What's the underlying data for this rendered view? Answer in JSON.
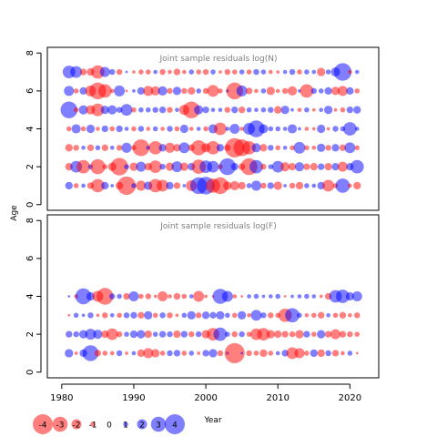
{
  "chart_data": {
    "type": "bubble",
    "ylabel": "Age",
    "xlabel": "Year",
    "colors": {
      "positive": "#0000ff",
      "negative": "#ff0000",
      "title": "#7f7f7f",
      "fill_opacity": 0.5
    },
    "x_ticks": [
      1980,
      1990,
      2000,
      2010,
      2020
    ],
    "y_ticks": [
      0,
      2,
      4,
      6,
      8
    ],
    "panels": [
      {
        "title": "Joint sample residuals log(N)",
        "xlim": [
          1978,
          2024
        ],
        "ylim": [
          -0.3,
          8.3
        ],
        "rows": [
          {
            "age": 1,
            "residuals": [
              0.9,
              -0.6,
              0.5,
              -0.8,
              -1.6,
              0.9,
              0.4,
              -0.9,
              -2.2,
              0.6,
              -1.2,
              1.0,
              -1.6,
              -1.4,
              0.9,
              -0.8,
              0.4,
              -1.3,
              2.0,
              2.1,
              -1.7,
              -2.0,
              -1.0,
              -1.1,
              -0.9,
              0.6,
              1.2,
              -0.7,
              0.8,
              -1.0,
              0.4,
              -0.7,
              -0.9,
              0.6,
              0.5,
              0.9,
              -1.4,
              -0.6,
              1.7,
              -0.5,
              -0.9
            ]
          },
          {
            "age": 2,
            "residuals": [
              -0.9,
              1.4,
              -1.6,
              0.6,
              -1.8,
              -0.6,
              -1.0,
              -2.1,
              0.6,
              -1.0,
              1.2,
              -0.9,
              -1.5,
              0.7,
              -1.0,
              1.3,
              -1.0,
              0.9,
              -1.7,
              1.5,
              1.4,
              -0.6,
              2.0,
              0.9,
              -0.8,
              -2.0,
              1.6,
              -0.7,
              0.6,
              1.4,
              -1.1,
              -0.9,
              1.1,
              -0.8,
              -0.9,
              0.8,
              -0.9,
              0.9,
              -1.2,
              0.9,
              1.6
            ]
          },
          {
            "age": 3,
            "residuals": [
              -0.9,
              -0.7,
              0.5,
              -0.8,
              0.6,
              -0.8,
              0.5,
              -0.7,
              1.2,
              -0.6,
              -2.0,
              0.5,
              -1.6,
              0.9,
              -1.2,
              -0.9,
              1.3,
              -0.8,
              -1.8,
              -1.1,
              -1.6,
              0.9,
              -0.8,
              -2.3,
              -2.0,
              -1.6,
              1.1,
              -0.9,
              0.7,
              -0.6,
              0.5,
              -0.6,
              1.4,
              -0.6,
              -0.5,
              1.0,
              -0.7,
              0.9,
              -0.8,
              1.3,
              -0.6
            ]
          },
          {
            "age": 4,
            "residuals": [
              -0.6,
              1.1,
              -0.6,
              1.0,
              -0.5,
              0.8,
              -0.6,
              0.8,
              0.5,
              -0.6,
              0.7,
              -0.5,
              0.6,
              -0.5,
              0.7,
              -0.6,
              1.0,
              -0.5,
              0.5,
              -0.6,
              1.1,
              -1.5,
              0.5,
              1.2,
              -0.5,
              1.4,
              2.0,
              1.1,
              0.6,
              0.6,
              0.5,
              1.1,
              0.4,
              -0.5,
              -0.4,
              1.0,
              -0.4,
              0.7,
              0.6,
              1.6,
              0.5
            ]
          },
          {
            "age": 5,
            "residuals": [
              2.0,
              -0.6,
              1.1,
              -1.1,
              -1.5,
              1.0,
              1.1,
              0.7,
              1.4,
              -0.6,
              0.6,
              0.6,
              0.7,
              0.8,
              -0.7,
              0.5,
              -1.2,
              -2.0,
              1.1,
              0.8,
              0.5,
              0.5,
              -0.7,
              0.8,
              -0.8,
              0.6,
              0.5,
              0.6,
              0.7,
              -0.9,
              1.0,
              0.4,
              -0.5,
              0.6,
              -0.4,
              0.5,
              1.0,
              -0.4,
              -0.6,
              0.8,
              0.9
            ]
          },
          {
            "age": 6,
            "residuals": [
              1.2,
              -0.6,
              0.9,
              -1.3,
              -2.0,
              -1.6,
              -0.5,
              1.3,
              -0.3,
              0.4,
              0.9,
              -1.2,
              -1.1,
              1.1,
              -0.7,
              1.0,
              -0.7,
              -0.9,
              0.6,
              -0.7,
              -1.4,
              -0.6,
              0.4,
              -2.0,
              1.3,
              -0.8,
              -0.5,
              0.6,
              -1.0,
              -0.5,
              -0.7,
              -1.1,
              0.4,
              -1.6,
              0.7,
              0.6,
              0.9,
              -1.0,
              -1.2,
              0.9,
              -0.6
            ]
          },
          {
            "age": 7,
            "residuals": [
              1.5,
              1.4,
              -0.8,
              -0.9,
              -1.6,
              1.2,
              0.7,
              -0.7,
              0.3,
              -0.4,
              -0.6,
              -0.6,
              0.5,
              -0.7,
              -0.5,
              -0.8,
              -0.5,
              0.6,
              -0.6,
              -0.7,
              0.6,
              -0.4,
              -0.7,
              -0.6,
              0.6,
              -0.6,
              0.7,
              0.6,
              -0.5,
              -0.4,
              0.5,
              0.7,
              -0.6,
              0.6,
              0.5,
              -1.0,
              0.6,
              1.1,
              2.1,
              -0.5,
              0.5
            ]
          }
        ]
      },
      {
        "title": "Joint sample residuals log(F)",
        "xlim": [
          1978,
          2024
        ],
        "ylim": [
          -0.3,
          8.3
        ],
        "rows": [
          {
            "age": 1,
            "residuals": [
              1.0,
              -0.4,
              0.9,
              1.9,
              -0.8,
              -0.6,
              -0.5,
              0.7,
              -0.4,
              0.5,
              -0.9,
              -1.2,
              -1.0,
              -0.6,
              0.7,
              0.8,
              -0.6,
              0.6,
              -0.4,
              0.8,
              1.0,
              -0.7,
              0.4,
              -2.4,
              0.3,
              -0.7,
              -0.6,
              -0.9,
              -0.6,
              0.5,
              0.8,
              -1.4,
              -1.2,
              -0.6,
              0.9,
              -0.9,
              0.7,
              -0.8,
              -0.5,
              0.6,
              -0.3
            ]
          },
          {
            "age": 2,
            "residuals": [
              0.8,
              0.7,
              1.0,
              1.3,
              1.1,
              -0.9,
              -1.4,
              -0.7,
              0.6,
              0.9,
              1.0,
              -0.9,
              0.6,
              0.8,
              0.7,
              -0.9,
              0.8,
              -0.7,
              0.7,
              -1.0,
              -1.5,
              1.6,
              0.6,
              -0.7,
              0.7,
              -0.6,
              -1.4,
              -1.5,
              -1.0,
              -0.9,
              -0.8,
              -0.7,
              -1.0,
              0.8,
              -0.6,
              1.0,
              -0.8,
              -1.2,
              -0.8,
              -0.7,
              -0.6
            ]
          },
          {
            "age": 3,
            "residuals": [
              -0.3,
              0.6,
              0.4,
              0.7,
              -0.4,
              -0.7,
              0.5,
              -0.6,
              0.7,
              0.8,
              -0.8,
              1.0,
              -0.6,
              0.7,
              -0.7,
              -0.4,
              0.6,
              1.0,
              -0.7,
              0.9,
              0.8,
              1.0,
              0.6,
              -0.6,
              1.0,
              -0.5,
              1.3,
              0.7,
              -0.7,
              -0.6,
              -1.6,
              1.7,
              0.6,
              -0.5,
              -0.6,
              -0.8,
              0.5,
              -0.6,
              -0.8,
              -0.5,
              -0.7
            ]
          },
          {
            "age": 4,
            "residuals": [
              0.3,
              -0.5,
              1.9,
              1.0,
              -1.3,
              -2.0,
              0.7,
              0.6,
              -0.8,
              1.2,
              -0.6,
              -0.7,
              -0.4,
              -1.2,
              -0.5,
              -0.8,
              -0.6,
              0.5,
              -1.3,
              -0.4,
              -0.3,
              1.8,
              1.3,
              -0.5,
              -0.3,
              0.5,
              0.6,
              0.4,
              0.5,
              0.6,
              -0.3,
              0.4,
              0.5,
              0.6,
              0.5,
              -0.4,
              -0.8,
              1.5,
              1.6,
              1.0,
              1.2
            ]
          }
        ]
      }
    ],
    "legend": {
      "values": [
        -4,
        -3,
        -2,
        -1,
        0,
        1,
        2,
        3,
        4
      ],
      "labels": [
        "-4",
        "-3",
        "-2",
        "-1",
        "0",
        "1",
        "2",
        "3",
        "4"
      ]
    }
  }
}
